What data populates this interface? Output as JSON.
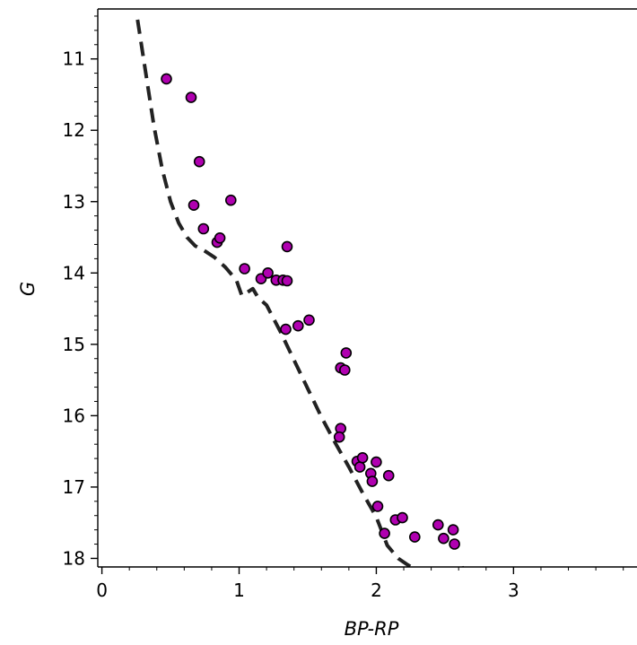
{
  "chart_data": {
    "type": "scatter",
    "title": "",
    "xlabel": "BP-RP",
    "ylabel": "G",
    "xlim": [
      -0.03,
      3.9
    ],
    "ylim": [
      10.3,
      18.12
    ],
    "y_inverted": true,
    "x_ticks": [
      0,
      1,
      2,
      3
    ],
    "y_ticks": [
      11,
      12,
      13,
      14,
      15,
      16,
      17,
      18
    ],
    "x_minor_step": 0.2,
    "y_minor_step": 0.2,
    "grid": false,
    "legend": "none",
    "series": [
      {
        "kind": "points",
        "color": "#b000b0",
        "edgecolor": "#000000",
        "x": [
          0.47,
          0.65,
          0.71,
          0.67,
          0.74,
          0.84,
          0.86,
          0.94,
          1.04,
          1.16,
          1.21,
          1.27,
          1.32,
          1.35,
          1.35,
          1.34,
          1.43,
          1.51,
          1.78,
          1.74,
          1.77,
          1.74,
          1.73,
          1.86,
          1.88,
          1.9,
          2.0,
          1.96,
          1.97,
          2.09,
          2.01,
          2.06,
          2.14,
          2.19,
          2.28,
          2.45,
          2.49,
          2.56,
          2.57
        ],
        "y": [
          11.28,
          11.54,
          12.44,
          13.05,
          13.38,
          13.57,
          13.51,
          12.98,
          13.94,
          14.08,
          14.0,
          14.1,
          14.1,
          14.11,
          13.63,
          14.79,
          14.74,
          14.66,
          15.12,
          15.33,
          15.36,
          16.18,
          16.3,
          16.64,
          16.72,
          16.59,
          16.65,
          16.81,
          16.92,
          16.84,
          17.27,
          17.65,
          17.46,
          17.43,
          17.7,
          17.53,
          17.72,
          17.6,
          17.8
        ]
      },
      {
        "kind": "dashed-line",
        "color": "#222222",
        "x": [
          0.26,
          0.32,
          0.38,
          0.44,
          0.5,
          0.56,
          0.62,
          0.68,
          0.74,
          0.82,
          0.9,
          0.98,
          1.02,
          1.06,
          1.1,
          1.14,
          1.2,
          1.3,
          1.4,
          1.5,
          1.6,
          1.7,
          1.8,
          1.9,
          2.0,
          2.08,
          2.16,
          2.22,
          2.28
        ],
        "y": [
          10.45,
          11.2,
          11.95,
          12.55,
          13.0,
          13.3,
          13.5,
          13.62,
          13.68,
          13.78,
          13.92,
          14.1,
          14.32,
          14.27,
          14.22,
          14.35,
          14.45,
          14.82,
          15.22,
          15.62,
          16.02,
          16.38,
          16.72,
          17.08,
          17.42,
          17.82,
          18.0,
          18.08,
          18.15
        ]
      },
      {
        "kind": "dashed-line",
        "color": "#222222",
        "x": [
          2.6,
          2.64
        ],
        "y": [
          18.15,
          18.13
        ]
      }
    ]
  }
}
